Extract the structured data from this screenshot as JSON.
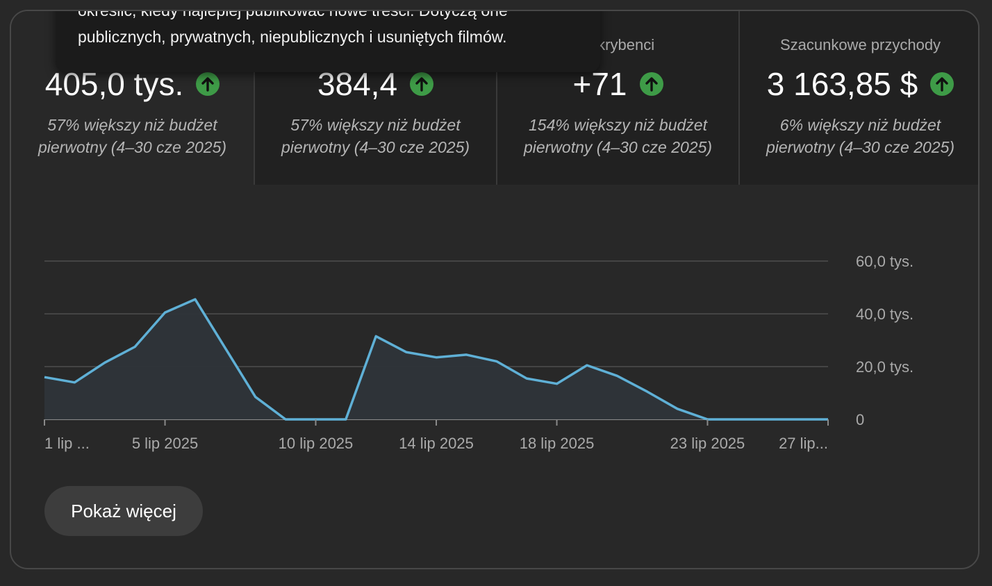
{
  "tooltip": {
    "line1": "określić, kiedy najlepiej publikować nowe treści. Dotyczą one",
    "line2": "publicznych, prywatnych, niepublicznych i usuniętych filmów."
  },
  "metrics": [
    {
      "label": "",
      "value": "405,0 tys.",
      "note": "57% większy niż budżet pierwotny (4–30 cze 2025)",
      "trend_icon": "arrow-up-icon"
    },
    {
      "label": "",
      "value": "384,4",
      "note": "57% większy niż budżet pierwotny (4–30 cze 2025)",
      "trend_icon": "arrow-up-icon"
    },
    {
      "label": "oskrybenci",
      "value": "+71",
      "note": "154% większy niż budżet pierwotny (4–30 cze 2025)",
      "trend_icon": "arrow-up-icon"
    },
    {
      "label": "Szacunkowe przychody",
      "value": "3 163,85 $",
      "note": "6% większy niż budżet pierwotny (4–30 cze 2025)",
      "trend_icon": "arrow-up-icon"
    }
  ],
  "colors": {
    "line": "#5fb0d6",
    "area": "#2e3439",
    "trend_up": "#3e9b47"
  },
  "chart_data": {
    "type": "area",
    "x": [
      "1 lip 2025",
      "2 lip 2025",
      "3 lip 2025",
      "4 lip 2025",
      "5 lip 2025",
      "6 lip 2025",
      "7 lip 2025",
      "8 lip 2025",
      "9 lip 2025",
      "10 lip 2025",
      "11 lip 2025",
      "12 lip 2025",
      "13 lip 2025",
      "14 lip 2025",
      "15 lip 2025",
      "16 lip 2025",
      "17 lip 2025",
      "18 lip 2025",
      "19 lip 2025",
      "20 lip 2025",
      "21 lip 2025",
      "22 lip 2025",
      "23 lip 2025",
      "24 lip 2025",
      "25 lip 2025",
      "26 lip 2025",
      "27 lip 2025"
    ],
    "values": [
      16000,
      14000,
      21500,
      27500,
      40500,
      45500,
      27000,
      8500,
      0,
      0,
      0,
      31500,
      25500,
      23500,
      24500,
      22000,
      15500,
      13500,
      20500,
      16500,
      10500,
      4000,
      0,
      0,
      0,
      0,
      0
    ],
    "tick_labels": [
      "1 lip ...",
      "5 lip 2025",
      "10 lip 2025",
      "14 lip 2025",
      "18 lip 2025",
      "23 lip 2025",
      "27 lip..."
    ],
    "tick_index": [
      0,
      4,
      9,
      13,
      17,
      22,
      26
    ],
    "y_ticks": [
      0,
      20000,
      40000,
      60000
    ],
    "y_tick_labels": [
      "0",
      "20,0 tys.",
      "40,0 tys.",
      "60,0 tys."
    ],
    "ylim": [
      0,
      60000
    ],
    "grid": true
  },
  "button": {
    "label": "Pokaż więcej"
  }
}
